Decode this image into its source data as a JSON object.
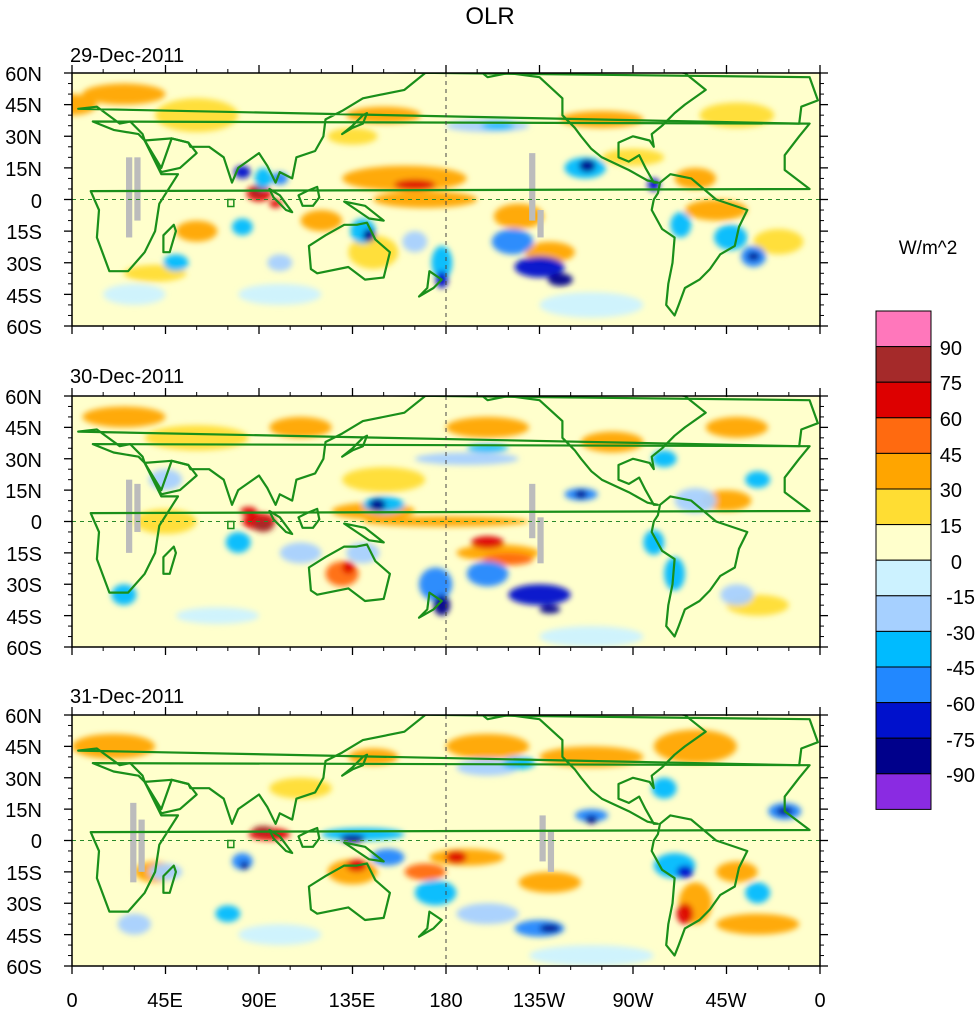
{
  "title": "OLR",
  "panels": [
    {
      "date": "29-Dec-2011"
    },
    {
      "date": "30-Dec-2011"
    },
    {
      "date": "31-Dec-2011"
    }
  ],
  "lat_labels": [
    "60N",
    "45N",
    "30N",
    "15N",
    "0",
    "15S",
    "30S",
    "45S",
    "60S"
  ],
  "lon_labels": [
    "0",
    "45E",
    "90E",
    "135E",
    "180",
    "135W",
    "90W",
    "45W",
    "0"
  ],
  "colorbar": {
    "units": "W/m^2",
    "levels": [
      "90",
      "75",
      "60",
      "45",
      "30",
      "15",
      "0",
      "-15",
      "-30",
      "-45",
      "-60",
      "-75",
      "-90"
    ],
    "colors": [
      "#ff77bb",
      "#a52a2a",
      "#dd0000",
      "#ff6a10",
      "#ffa500",
      "#ffdd33",
      "#ffffcc",
      "#ccf2ff",
      "#a6d0ff",
      "#00bbff",
      "#2288ff",
      "#0011cc",
      "#00008b",
      "#8a2be2"
    ]
  },
  "palette": {
    "coast": "#1a8f1a",
    "missing": "#bcbcbc"
  }
}
